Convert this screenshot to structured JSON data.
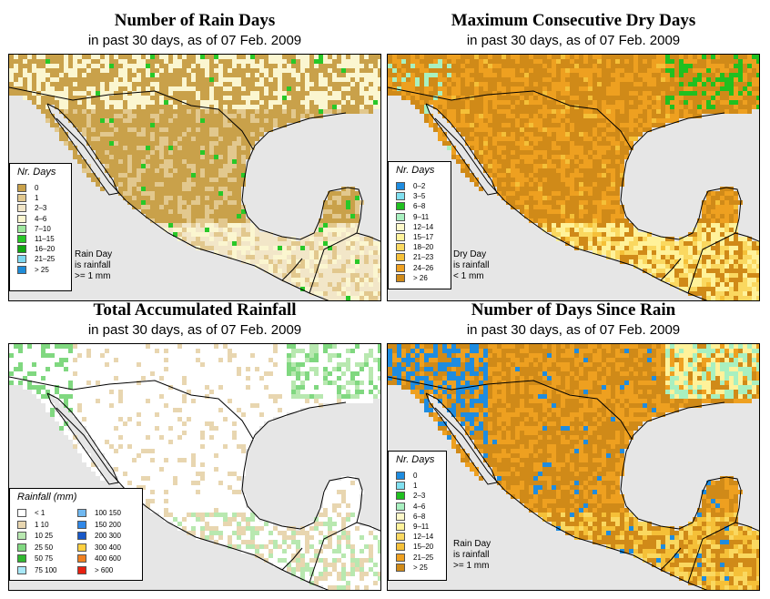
{
  "colors": {
    "ocean": "#e6e6e6",
    "brown_dark": "#c9a14a",
    "tan": "#e8d6b0",
    "cream": "#f4eccf",
    "green_dark": "#18c018",
    "green": "#7fd87f",
    "orange": "#d48a10",
    "orange_light": "#f0b030",
    "yellow": "#fff29a",
    "blue": "#2a8be0",
    "cyan": "#88e8e8",
    "aqua": "#a8f0c8"
  },
  "panels": [
    {
      "title": "Number of Rain Days",
      "subtitle": "in past 30 days, as of  07 Feb. 2009",
      "legend_title": "Nr. Days",
      "legend": [
        {
          "label": "0",
          "color": "#c9a14a"
        },
        {
          "label": "1",
          "color": "#e2c88e"
        },
        {
          "label": "2–3",
          "color": "#f2e6c8"
        },
        {
          "label": "4–6",
          "color": "#fbf6d0"
        },
        {
          "label": "7–10",
          "color": "#9ee89e"
        },
        {
          "label": "11–15",
          "color": "#28c828"
        },
        {
          "label": "16–20",
          "color": "#12a812"
        },
        {
          "label": "21–25",
          "color": "#7ed8f0"
        },
        {
          "label": "> 25",
          "color": "#1e8cd8"
        }
      ],
      "note": [
        "Rain Day",
        "is rainfall",
        ">= 1 mm"
      ]
    },
    {
      "title": "Maximum Consecutive Dry Days",
      "subtitle": "in past 30 days, as of  07 Feb. 2009",
      "legend_title": "Nr. Days",
      "legend": [
        {
          "label": "0–2",
          "color": "#1e8ce0"
        },
        {
          "label": "3–5",
          "color": "#80e0f0"
        },
        {
          "label": "6–8",
          "color": "#20c020"
        },
        {
          "label": "9–11",
          "color": "#a8f0c0"
        },
        {
          "label": "12–14",
          "color": "#fdf8c8"
        },
        {
          "label": "15–17",
          "color": "#fff29a"
        },
        {
          "label": "18–20",
          "color": "#fad860"
        },
        {
          "label": "21–23",
          "color": "#f5c038"
        },
        {
          "label": "24–26",
          "color": "#eea020"
        },
        {
          "label": "> 26",
          "color": "#d08a18"
        }
      ],
      "note": [
        "Dry Day",
        "is rainfall",
        "< 1 mm"
      ]
    },
    {
      "title": "Total Accumulated Rainfall",
      "subtitle": "in past 30 days, as of  07 Feb. 2009",
      "legend_title": "Rainfall (mm)",
      "legend": [
        {
          "label": "< 1",
          "color": "#ffffff"
        },
        {
          "label": "1    10",
          "color": "#e8d6b0"
        },
        {
          "label": "10    25",
          "color": "#b8e8b0"
        },
        {
          "label": "25    50",
          "color": "#80d880"
        },
        {
          "label": "50    75",
          "color": "#30b830"
        },
        {
          "label": "75  100",
          "color": "#a8e8f8"
        },
        {
          "label": "100  150",
          "color": "#70b8f0"
        },
        {
          "label": "150  200",
          "color": "#3088e8"
        },
        {
          "label": "200  300",
          "color": "#1858c8"
        },
        {
          "label": "300  400",
          "color": "#ffd040"
        },
        {
          "label": "400  600",
          "color": "#f08020"
        },
        {
          "label": "> 600",
          "color": "#e82010"
        }
      ],
      "note": []
    },
    {
      "title": "Number of Days Since Rain",
      "subtitle": "in past 30 days, as of  07 Feb. 2009",
      "legend_title": "Nr. Days",
      "legend": [
        {
          "label": "0",
          "color": "#1e8ce0"
        },
        {
          "label": "1",
          "color": "#80e0f0"
        },
        {
          "label": "2–3",
          "color": "#20c020"
        },
        {
          "label": "4–6",
          "color": "#a8f0c0"
        },
        {
          "label": "6–8",
          "color": "#fdf8c8"
        },
        {
          "label": "9–11",
          "color": "#fff29a"
        },
        {
          "label": "12–14",
          "color": "#fad860"
        },
        {
          "label": "15–20",
          "color": "#f5c038"
        },
        {
          "label": "21–25",
          "color": "#eea020"
        },
        {
          "label": "> 25",
          "color": "#d08a18"
        }
      ],
      "note": [
        "Rain Day",
        "is rainfall",
        ">= 1 mm"
      ]
    }
  ]
}
